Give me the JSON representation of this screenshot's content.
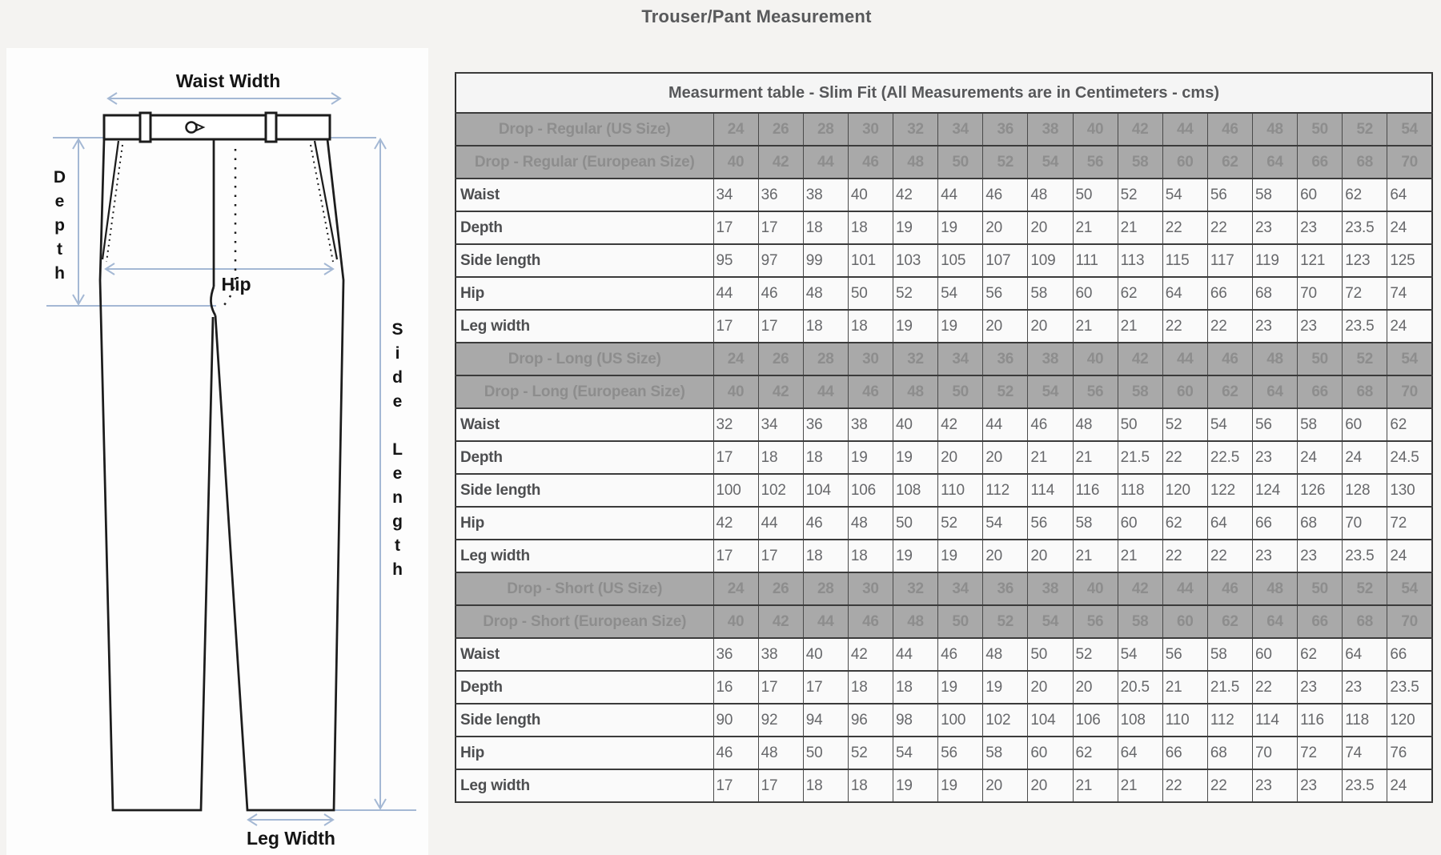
{
  "page_title": "Trouser/Pant Measurement",
  "diagram": {
    "waist_width_label": "Waist Width",
    "depth_label": "Depth",
    "hip_label": "Hip",
    "side_length_label": "Side Length",
    "leg_width_label": "Leg Width",
    "arrow_color": "#a4b8d4",
    "outline_color": "#1c1c1c"
  },
  "table": {
    "caption": "Measurment table - Slim Fit (All Measurements are in Centimeters - cms)",
    "sections": [
      {
        "us_label": "Drop - Regular (US Size)",
        "eu_label": "Drop - Regular (European Size)",
        "us_sizes": [
          "24",
          "26",
          "28",
          "30",
          "32",
          "34",
          "36",
          "38",
          "40",
          "42",
          "44",
          "46",
          "48",
          "50",
          "52",
          "54"
        ],
        "eu_sizes": [
          "40",
          "42",
          "44",
          "46",
          "48",
          "50",
          "52",
          "54",
          "56",
          "58",
          "60",
          "62",
          "64",
          "66",
          "68",
          "70"
        ],
        "rows": [
          {
            "label": "Waist",
            "values": [
              "34",
              "36",
              "38",
              "40",
              "42",
              "44",
              "46",
              "48",
              "50",
              "52",
              "54",
              "56",
              "58",
              "60",
              "62",
              "64"
            ]
          },
          {
            "label": "Depth",
            "values": [
              "17",
              "17",
              "18",
              "18",
              "19",
              "19",
              "20",
              "20",
              "21",
              "21",
              "22",
              "22",
              "23",
              "23",
              "23.5",
              "24"
            ]
          },
          {
            "label": "Side length",
            "values": [
              "95",
              "97",
              "99",
              "101",
              "103",
              "105",
              "107",
              "109",
              "111",
              "113",
              "115",
              "117",
              "119",
              "121",
              "123",
              "125"
            ]
          },
          {
            "label": "Hip",
            "values": [
              "44",
              "46",
              "48",
              "50",
              "52",
              "54",
              "56",
              "58",
              "60",
              "62",
              "64",
              "66",
              "68",
              "70",
              "72",
              "74"
            ]
          },
          {
            "label": "Leg width",
            "values": [
              "17",
              "17",
              "18",
              "18",
              "19",
              "19",
              "20",
              "20",
              "21",
              "21",
              "22",
              "22",
              "23",
              "23",
              "23.5",
              "24"
            ]
          }
        ]
      },
      {
        "us_label": "Drop - Long (US Size)",
        "eu_label": "Drop - Long (European Size)",
        "us_sizes": [
          "24",
          "26",
          "28",
          "30",
          "32",
          "34",
          "36",
          "38",
          "40",
          "42",
          "44",
          "46",
          "48",
          "50",
          "52",
          "54"
        ],
        "eu_sizes": [
          "40",
          "42",
          "44",
          "46",
          "48",
          "50",
          "52",
          "54",
          "56",
          "58",
          "60",
          "62",
          "64",
          "66",
          "68",
          "70"
        ],
        "rows": [
          {
            "label": "Waist",
            "values": [
              "32",
              "34",
              "36",
              "38",
              "40",
              "42",
              "44",
              "46",
              "48",
              "50",
              "52",
              "54",
              "56",
              "58",
              "60",
              "62"
            ]
          },
          {
            "label": "Depth",
            "values": [
              "17",
              "18",
              "18",
              "19",
              "19",
              "20",
              "20",
              "21",
              "21",
              "21.5",
              "22",
              "22.5",
              "23",
              "24",
              "24",
              "24.5"
            ]
          },
          {
            "label": "Side length",
            "values": [
              "100",
              "102",
              "104",
              "106",
              "108",
              "110",
              "112",
              "114",
              "116",
              "118",
              "120",
              "122",
              "124",
              "126",
              "128",
              "130"
            ]
          },
          {
            "label": "Hip",
            "values": [
              "42",
              "44",
              "46",
              "48",
              "50",
              "52",
              "54",
              "56",
              "58",
              "60",
              "62",
              "64",
              "66",
              "68",
              "70",
              "72"
            ]
          },
          {
            "label": "Leg width",
            "values": [
              "17",
              "17",
              "18",
              "18",
              "19",
              "19",
              "20",
              "20",
              "21",
              "21",
              "22",
              "22",
              "23",
              "23",
              "23.5",
              "24"
            ]
          }
        ]
      },
      {
        "us_label": "Drop - Short (US Size)",
        "eu_label": "Drop - Short (European Size)",
        "us_sizes": [
          "24",
          "26",
          "28",
          "30",
          "32",
          "34",
          "36",
          "38",
          "40",
          "42",
          "44",
          "46",
          "48",
          "50",
          "52",
          "54"
        ],
        "eu_sizes": [
          "40",
          "42",
          "44",
          "46",
          "48",
          "50",
          "52",
          "54",
          "56",
          "58",
          "60",
          "62",
          "64",
          "66",
          "68",
          "70"
        ],
        "rows": [
          {
            "label": "Waist",
            "values": [
              "36",
              "38",
              "40",
              "42",
              "44",
              "46",
              "48",
              "50",
              "52",
              "54",
              "56",
              "58",
              "60",
              "62",
              "64",
              "66"
            ]
          },
          {
            "label": "Depth",
            "values": [
              "16",
              "17",
              "17",
              "18",
              "18",
              "19",
              "19",
              "20",
              "20",
              "20.5",
              "21",
              "21.5",
              "22",
              "23",
              "23",
              "23.5"
            ]
          },
          {
            "label": "Side length",
            "values": [
              "90",
              "92",
              "94",
              "96",
              "98",
              "100",
              "102",
              "104",
              "106",
              "108",
              "110",
              "112",
              "114",
              "116",
              "118",
              "120"
            ]
          },
          {
            "label": "Hip",
            "values": [
              "46",
              "48",
              "50",
              "52",
              "54",
              "56",
              "58",
              "60",
              "62",
              "64",
              "66",
              "68",
              "70",
              "72",
              "74",
              "76"
            ]
          },
          {
            "label": "Leg width",
            "values": [
              "17",
              "17",
              "18",
              "18",
              "19",
              "19",
              "20",
              "20",
              "21",
              "21",
              "22",
              "22",
              "23",
              "23",
              "23.5",
              "24"
            ]
          }
        ]
      }
    ]
  }
}
